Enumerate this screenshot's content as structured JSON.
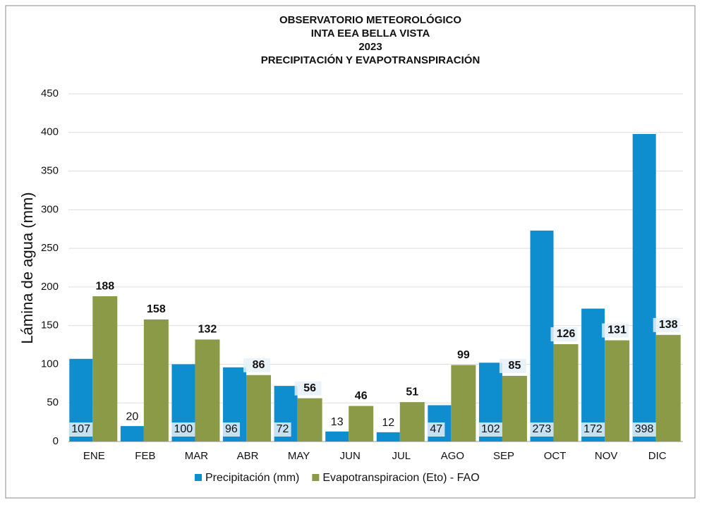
{
  "chart_data": {
    "type": "bar",
    "title": [
      "OBSERVATORIO METEOROLÓGICO",
      "INTA EEA BELLA VISTA",
      "2023",
      "PRECIPITACIÓN Y EVAPOTRANSPIRACIÓN"
    ],
    "y_label": "Lámina de agua (mm)",
    "categories": [
      "ENE",
      "FEB",
      "MAR",
      "ABR",
      "MAY",
      "JUN",
      "JUL",
      "AGO",
      "SEP",
      "OCT",
      "NOV",
      "DIC"
    ],
    "series": [
      {
        "name": "Precipitación (mm)",
        "color": "#0f8ecf",
        "values": [
          107,
          20,
          100,
          96,
          72,
          13,
          12,
          47,
          102,
          273,
          172,
          398
        ]
      },
      {
        "name": "Evapotranspiracion (Eto) - FAO",
        "color": "#8b9a46",
        "values": [
          188,
          158,
          132,
          86,
          56,
          46,
          51,
          99,
          85,
          126,
          131,
          138
        ]
      }
    ],
    "ylim": [
      0,
      450
    ],
    "yticks": [
      0,
      50,
      100,
      150,
      200,
      250,
      300,
      350,
      400,
      450
    ],
    "grid": true,
    "legend": "bottom"
  }
}
